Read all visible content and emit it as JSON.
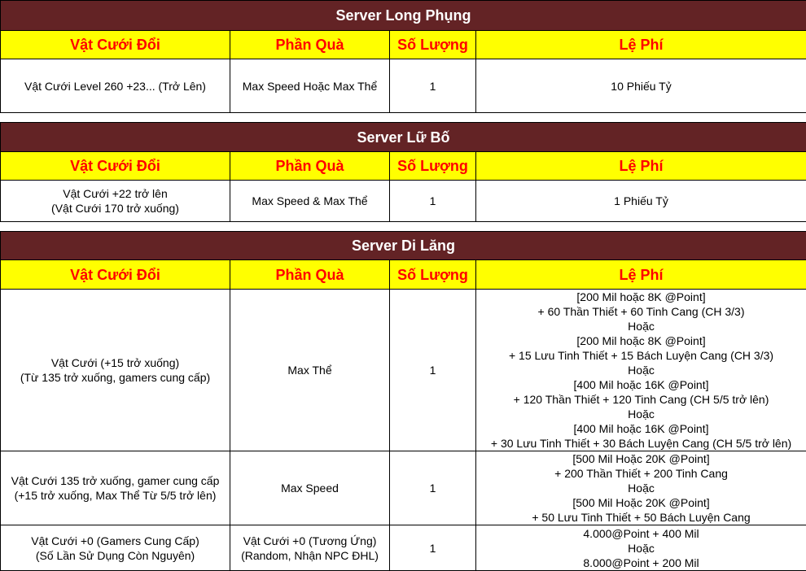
{
  "colors": {
    "title_bg": "#632325",
    "title_text": "#ffffff",
    "header_bg": "#ffff00",
    "header_text": "#ff0000",
    "border": "#000000"
  },
  "headers": [
    "Vật Cưới Đổi",
    "Phần Quà",
    "Số Lượng",
    "Lệ Phí"
  ],
  "servers": [
    {
      "title": "Server Long Phụng",
      "rows": [
        {
          "item": [
            "Vật Cưới Level 260 +23... (Trở Lên)"
          ],
          "reward": [
            "Max Speed Hoặc Max Thể"
          ],
          "qty": "1",
          "fee": [
            "10 Phiếu Tỷ"
          ]
        }
      ]
    },
    {
      "title": "Server Lữ Bố",
      "rows": [
        {
          "item": [
            "Vật Cưới +22 trở lên",
            "(Vật Cưới 170 trở xuống)"
          ],
          "reward": [
            "Max Speed & Max Thể"
          ],
          "qty": "1",
          "fee": [
            "1 Phiếu Tỷ"
          ]
        }
      ]
    },
    {
      "title": "Server Di Lăng",
      "rows": [
        {
          "item": [
            "Vật Cưới (+15 trở xuống)",
            "(Từ 135 trở xuống, gamers cung cấp)"
          ],
          "reward": [
            "Max Thể"
          ],
          "qty": "1",
          "fee": [
            "[200 Mil hoặc 8K @Point]",
            "+ 60 Thần Thiết + 60 Tinh Cang (CH 3/3)",
            "Hoặc",
            "[200 Mil hoặc 8K @Point]",
            "+ 15 Lưu Tinh Thiết + 15 Bách Luyện Cang (CH 3/3)",
            "Hoặc",
            "[400 Mil hoặc 16K @Point]",
            "+ 120 Thần Thiết + 120 Tinh Cang (CH 5/5 trở lên)",
            "Hoặc",
            "[400 Mil hoặc 16K @Point]",
            "+ 30 Lưu Tinh Thiết + 30 Bách Luyện Cang (CH 5/5 trở lên)"
          ]
        },
        {
          "item": [
            "Vật Cưới 135 trở xuống, gamer cung cấp",
            "(+15 trở xuống, Max Thể Từ 5/5 trở lên)"
          ],
          "reward": [
            "Max Speed"
          ],
          "qty": "1",
          "fee": [
            "[500 Mil Hoặc 20K @Point]",
            "+ 200 Thần Thiết + 200 Tinh Cang",
            "Hoặc",
            "[500 Mil Hoặc 20K @Point]",
            "+ 50 Lưu Tinh Thiết + 50 Bách Luyện Cang"
          ]
        },
        {
          "item": [
            "Vật Cưới +0 (Gamers Cung Cấp)",
            "(Số Lần Sử Dụng Còn Nguyên)"
          ],
          "reward": [
            "Vật Cưới +0 (Tương Ứng)",
            "(Random, Nhận NPC ĐHL)"
          ],
          "qty": "1",
          "fee": [
            "4.000@Point + 400 Mil",
            "Hoặc",
            "8.000@Point + 200 Mil"
          ]
        }
      ]
    }
  ]
}
